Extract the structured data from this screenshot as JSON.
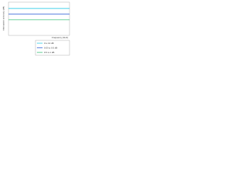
{
  "chart_data": {
    "type": "line",
    "ylabel": "Attenuation accuracy (dB)",
    "xlabel": "Frequency (GHz)",
    "x": [
      0,
      10
    ],
    "xlim": [
      0,
      10
    ],
    "ylim": [
      0,
      1
    ],
    "legend": "lower-right",
    "series": [
      {
        "name": "0 to 10 dB",
        "color": "#1ec8e6",
        "values": [
          0.81,
          0.81
        ]
      },
      {
        "name": "0.03 to 0.5 dB",
        "color": "#2a5cd6",
        "values": [
          0.64,
          0.64
        ]
      },
      {
        "name": "0.5 to 1 dB",
        "color": "#2fbf71",
        "values": [
          0.47,
          0.47
        ]
      }
    ]
  }
}
